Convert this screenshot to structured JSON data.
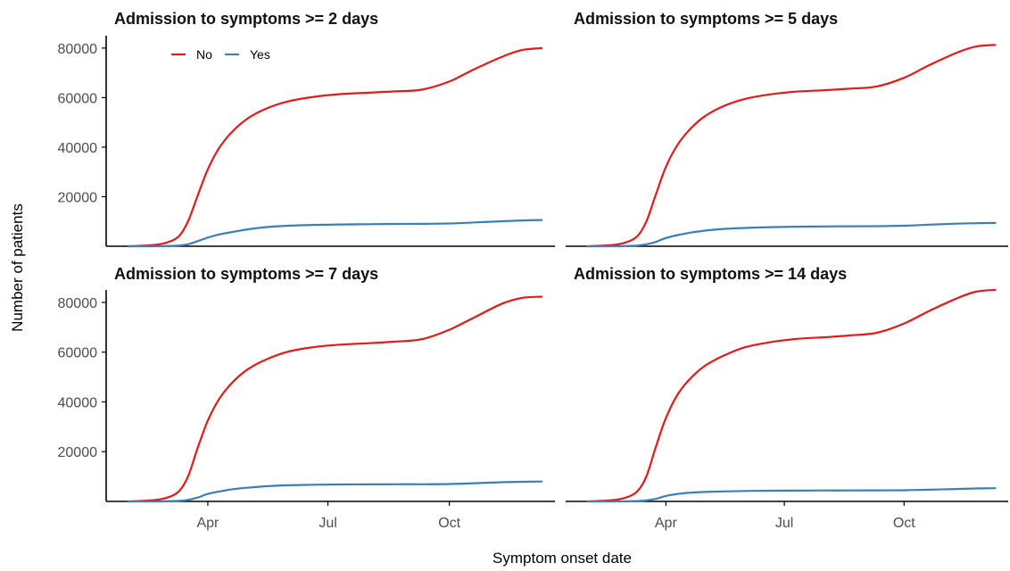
{
  "colors": {
    "No": "#e31a1c",
    "Yes": "#3a7fb8"
  },
  "legend": {
    "items": [
      "No",
      "Yes"
    ]
  },
  "xlabel": "Symptom onset date",
  "ylabel": "Number of patients",
  "chart_data": [
    {
      "type": "line",
      "title": "Admission to symptoms >= 2 days",
      "xlabel": "Symptom onset date",
      "ylabel": "Number of patients",
      "x_ticks": [
        "Apr",
        "Jul",
        "Oct"
      ],
      "y_ticks": [
        20000,
        40000,
        60000,
        80000
      ],
      "legend_position": "top-left",
      "grid": false,
      "x": [
        "2020-02-01",
        "2020-02-20",
        "2020-03-01",
        "2020-03-10",
        "2020-03-17",
        "2020-03-24",
        "2020-04-01",
        "2020-04-10",
        "2020-04-20",
        "2020-05-01",
        "2020-05-15",
        "2020-06-01",
        "2020-06-20",
        "2020-07-10",
        "2020-08-01",
        "2020-08-20",
        "2020-09-10",
        "2020-10-01",
        "2020-10-20",
        "2020-11-10",
        "2020-11-25",
        "2020-12-10"
      ],
      "series": [
        {
          "name": "No",
          "values": [
            0,
            500,
            1500,
            4000,
            10000,
            20000,
            31000,
            40000,
            46500,
            51500,
            55500,
            58500,
            60300,
            61400,
            62000,
            62500,
            63200,
            66500,
            71500,
            76500,
            79200,
            80000
          ]
        },
        {
          "name": "Yes",
          "values": [
            0,
            0,
            100,
            300,
            800,
            2000,
            3500,
            4800,
            5800,
            6800,
            7700,
            8300,
            8600,
            8800,
            8900,
            9000,
            9050,
            9200,
            9600,
            10100,
            10400,
            10600
          ]
        }
      ]
    },
    {
      "type": "line",
      "title": "Admission to symptoms >= 5 days",
      "xlabel": "Symptom onset date",
      "ylabel": "Number of patients",
      "x_ticks": [
        "Apr",
        "Jul",
        "Oct"
      ],
      "y_ticks": [
        20000,
        40000,
        60000,
        80000
      ],
      "grid": false,
      "x": [
        "2020-02-01",
        "2020-02-20",
        "2020-03-01",
        "2020-03-10",
        "2020-03-17",
        "2020-03-24",
        "2020-04-01",
        "2020-04-10",
        "2020-04-20",
        "2020-05-01",
        "2020-05-15",
        "2020-06-01",
        "2020-06-20",
        "2020-07-10",
        "2020-08-01",
        "2020-08-20",
        "2020-09-10",
        "2020-10-01",
        "2020-10-20",
        "2020-11-10",
        "2020-11-25",
        "2020-12-10"
      ],
      "series": [
        {
          "name": "No",
          "values": [
            0,
            500,
            1500,
            4000,
            10000,
            20500,
            32000,
            41000,
            47500,
            52500,
            56500,
            59500,
            61300,
            62400,
            63000,
            63600,
            64500,
            68000,
            73000,
            78000,
            80600,
            81300
          ]
        },
        {
          "name": "Yes",
          "values": [
            0,
            0,
            100,
            300,
            800,
            1700,
            3300,
            4500,
            5500,
            6300,
            7000,
            7400,
            7700,
            7900,
            8000,
            8050,
            8100,
            8300,
            8700,
            9100,
            9300,
            9400
          ]
        }
      ]
    },
    {
      "type": "line",
      "title": "Admission to symptoms >= 7 days",
      "xlabel": "Symptom onset date",
      "ylabel": "Number of patients",
      "x_ticks": [
        "Apr",
        "Jul",
        "Oct"
      ],
      "y_ticks": [
        20000,
        40000,
        60000,
        80000
      ],
      "grid": false,
      "x": [
        "2020-02-01",
        "2020-02-20",
        "2020-03-01",
        "2020-03-10",
        "2020-03-17",
        "2020-03-24",
        "2020-04-01",
        "2020-04-10",
        "2020-04-20",
        "2020-05-01",
        "2020-05-15",
        "2020-06-01",
        "2020-06-20",
        "2020-07-10",
        "2020-08-01",
        "2020-08-20",
        "2020-09-10",
        "2020-10-01",
        "2020-10-20",
        "2020-11-10",
        "2020-11-25",
        "2020-12-10"
      ],
      "series": [
        {
          "name": "No",
          "values": [
            0,
            500,
            1500,
            4000,
            10000,
            21000,
            32500,
            41500,
            48000,
            53000,
            57000,
            60200,
            62000,
            63000,
            63600,
            64200,
            65200,
            69000,
            74000,
            79500,
            81800,
            82300
          ]
        },
        {
          "name": "Yes",
          "values": [
            0,
            0,
            100,
            250,
            600,
            1500,
            3000,
            4000,
            4900,
            5500,
            6100,
            6500,
            6700,
            6800,
            6850,
            6900,
            6900,
            7000,
            7300,
            7700,
            7900,
            8000
          ]
        }
      ]
    },
    {
      "type": "line",
      "title": "Admission to symptoms >= 14 days",
      "xlabel": "Symptom onset date",
      "ylabel": "Number of patients",
      "x_ticks": [
        "Apr",
        "Jul",
        "Oct"
      ],
      "y_ticks": [
        20000,
        40000,
        60000,
        80000
      ],
      "grid": false,
      "x": [
        "2020-02-01",
        "2020-02-20",
        "2020-03-01",
        "2020-03-10",
        "2020-03-17",
        "2020-03-24",
        "2020-04-01",
        "2020-04-10",
        "2020-04-20",
        "2020-05-01",
        "2020-05-15",
        "2020-06-01",
        "2020-06-20",
        "2020-07-10",
        "2020-08-01",
        "2020-08-20",
        "2020-09-10",
        "2020-10-01",
        "2020-10-20",
        "2020-11-10",
        "2020-11-25",
        "2020-12-10"
      ],
      "series": [
        {
          "name": "No",
          "values": [
            0,
            500,
            1500,
            4000,
            10000,
            21500,
            33500,
            43000,
            49500,
            54500,
            58500,
            62000,
            64000,
            65300,
            66000,
            66700,
            67800,
            71500,
            76500,
            81500,
            84300,
            85000
          ]
        },
        {
          "name": "Yes",
          "values": [
            0,
            0,
            50,
            150,
            400,
            1000,
            2200,
            3000,
            3500,
            3800,
            4000,
            4200,
            4300,
            4350,
            4400,
            4400,
            4450,
            4500,
            4700,
            5000,
            5200,
            5300
          ]
        }
      ]
    }
  ]
}
